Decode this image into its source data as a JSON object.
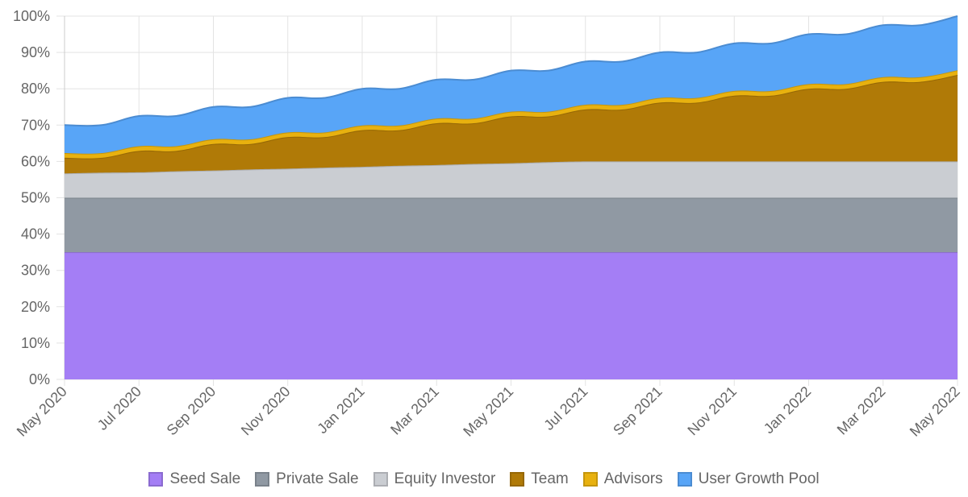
{
  "chart_data": {
    "type": "area",
    "stacked": true,
    "x": [
      "May 2020",
      "Jun 2020",
      "Jul 2020",
      "Aug 2020",
      "Sep 2020",
      "Oct 2020",
      "Nov 2020",
      "Dec 2020",
      "Jan 2021",
      "Feb 2021",
      "Mar 2021",
      "Apr 2021",
      "May 2021",
      "Jun 2021",
      "Jul 2021",
      "Aug 2021",
      "Sep 2021",
      "Oct 2021",
      "Nov 2021",
      "Dec 2021",
      "Jan 2022",
      "Feb 2022",
      "Mar 2022",
      "Apr 2022",
      "May 2022"
    ],
    "x_tick_labels": [
      "May 2020",
      "Jul 2020",
      "Sep 2020",
      "Nov 2020",
      "Jan 2021",
      "Mar 2021",
      "May 2021",
      "Jul 2021",
      "Sep 2021",
      "Nov 2021",
      "Jan 2022",
      "Mar 2022",
      "May 2022"
    ],
    "y_tick_labels": [
      "0%",
      "10%",
      "20%",
      "30%",
      "40%",
      "50%",
      "60%",
      "70%",
      "80%",
      "90%",
      "100%"
    ],
    "ylim": [
      0,
      100
    ],
    "grid": true,
    "legend": "bottom",
    "series": [
      {
        "name": "Seed Sale",
        "color": "#a47ef5",
        "values": [
          35,
          35,
          35,
          35,
          35,
          35,
          35,
          35,
          35,
          35,
          35,
          35,
          35,
          35,
          35,
          35,
          35,
          35,
          35,
          35,
          35,
          35,
          35,
          35,
          35
        ]
      },
      {
        "name": "Private Sale",
        "color": "#9099a3",
        "values": [
          15,
          15,
          15,
          15,
          15,
          15,
          15,
          15,
          15,
          15,
          15,
          15,
          15,
          15,
          15,
          15,
          15,
          15,
          15,
          15,
          15,
          15,
          15,
          15,
          15
        ]
      },
      {
        "name": "Equity Investor",
        "color": "#cacdd2",
        "values": [
          6.7,
          6.9,
          7.0,
          7.3,
          7.5,
          7.8,
          8.0,
          8.3,
          8.5,
          8.8,
          9.0,
          9.3,
          9.5,
          9.8,
          10,
          10,
          10,
          10,
          10,
          10,
          10,
          10,
          10,
          10,
          10
        ]
      },
      {
        "name": "Team",
        "color": "#b07a07",
        "values": [
          4.3,
          4.1,
          5.9,
          5.6,
          7.3,
          7.0,
          8.7,
          8.4,
          10.1,
          9.8,
          11.5,
          11.2,
          12.9,
          12.6,
          14.3,
          14.3,
          16.2,
          16.2,
          18.1,
          18.1,
          20.0,
          20.0,
          21.9,
          21.9,
          23.8
        ]
      },
      {
        "name": "Advisors",
        "color": "#e8b10f",
        "values": [
          1.3,
          1.3,
          1.3,
          1.3,
          1.3,
          1.3,
          1.3,
          1.3,
          1.3,
          1.3,
          1.3,
          1.3,
          1.3,
          1.3,
          1.3,
          1.3,
          1.3,
          1.3,
          1.3,
          1.3,
          1.3,
          1.3,
          1.3,
          1.3,
          1.3
        ]
      },
      {
        "name": "User Growth Pool",
        "color": "#58a5f7",
        "values": [
          7.7,
          7.7,
          8.3,
          8.3,
          8.9,
          8.9,
          9.5,
          9.5,
          10.1,
          10.1,
          10.7,
          10.7,
          11.3,
          11.3,
          11.9,
          11.9,
          12.5,
          12.5,
          13.1,
          13.1,
          13.7,
          13.7,
          14.3,
          14.3,
          14.9
        ]
      }
    ]
  }
}
